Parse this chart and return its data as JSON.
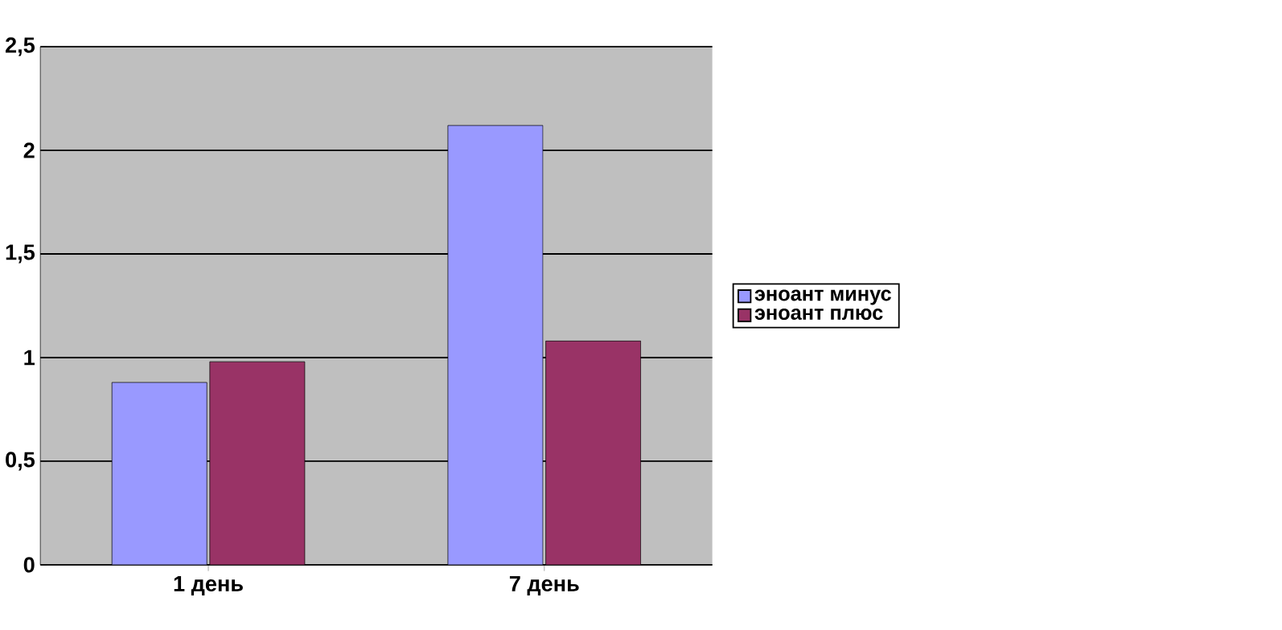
{
  "chart_data": {
    "type": "bar",
    "categories": [
      "1 день",
      "7 день"
    ],
    "series": [
      {
        "name": "эноант минус",
        "color": "#9999ff",
        "values": [
          0.88,
          2.12
        ]
      },
      {
        "name": "эноант плюс",
        "color": "#993366",
        "values": [
          0.98,
          1.08
        ]
      }
    ],
    "ylim": [
      0,
      2.5
    ],
    "yticks": [
      0,
      {
        "value": 0.5,
        "label": "0,5"
      },
      1,
      {
        "value": 1.5,
        "label": "1,5"
      },
      2,
      {
        "value": 2.5,
        "label": "2,5"
      }
    ],
    "grid": "y",
    "legend": "right"
  }
}
